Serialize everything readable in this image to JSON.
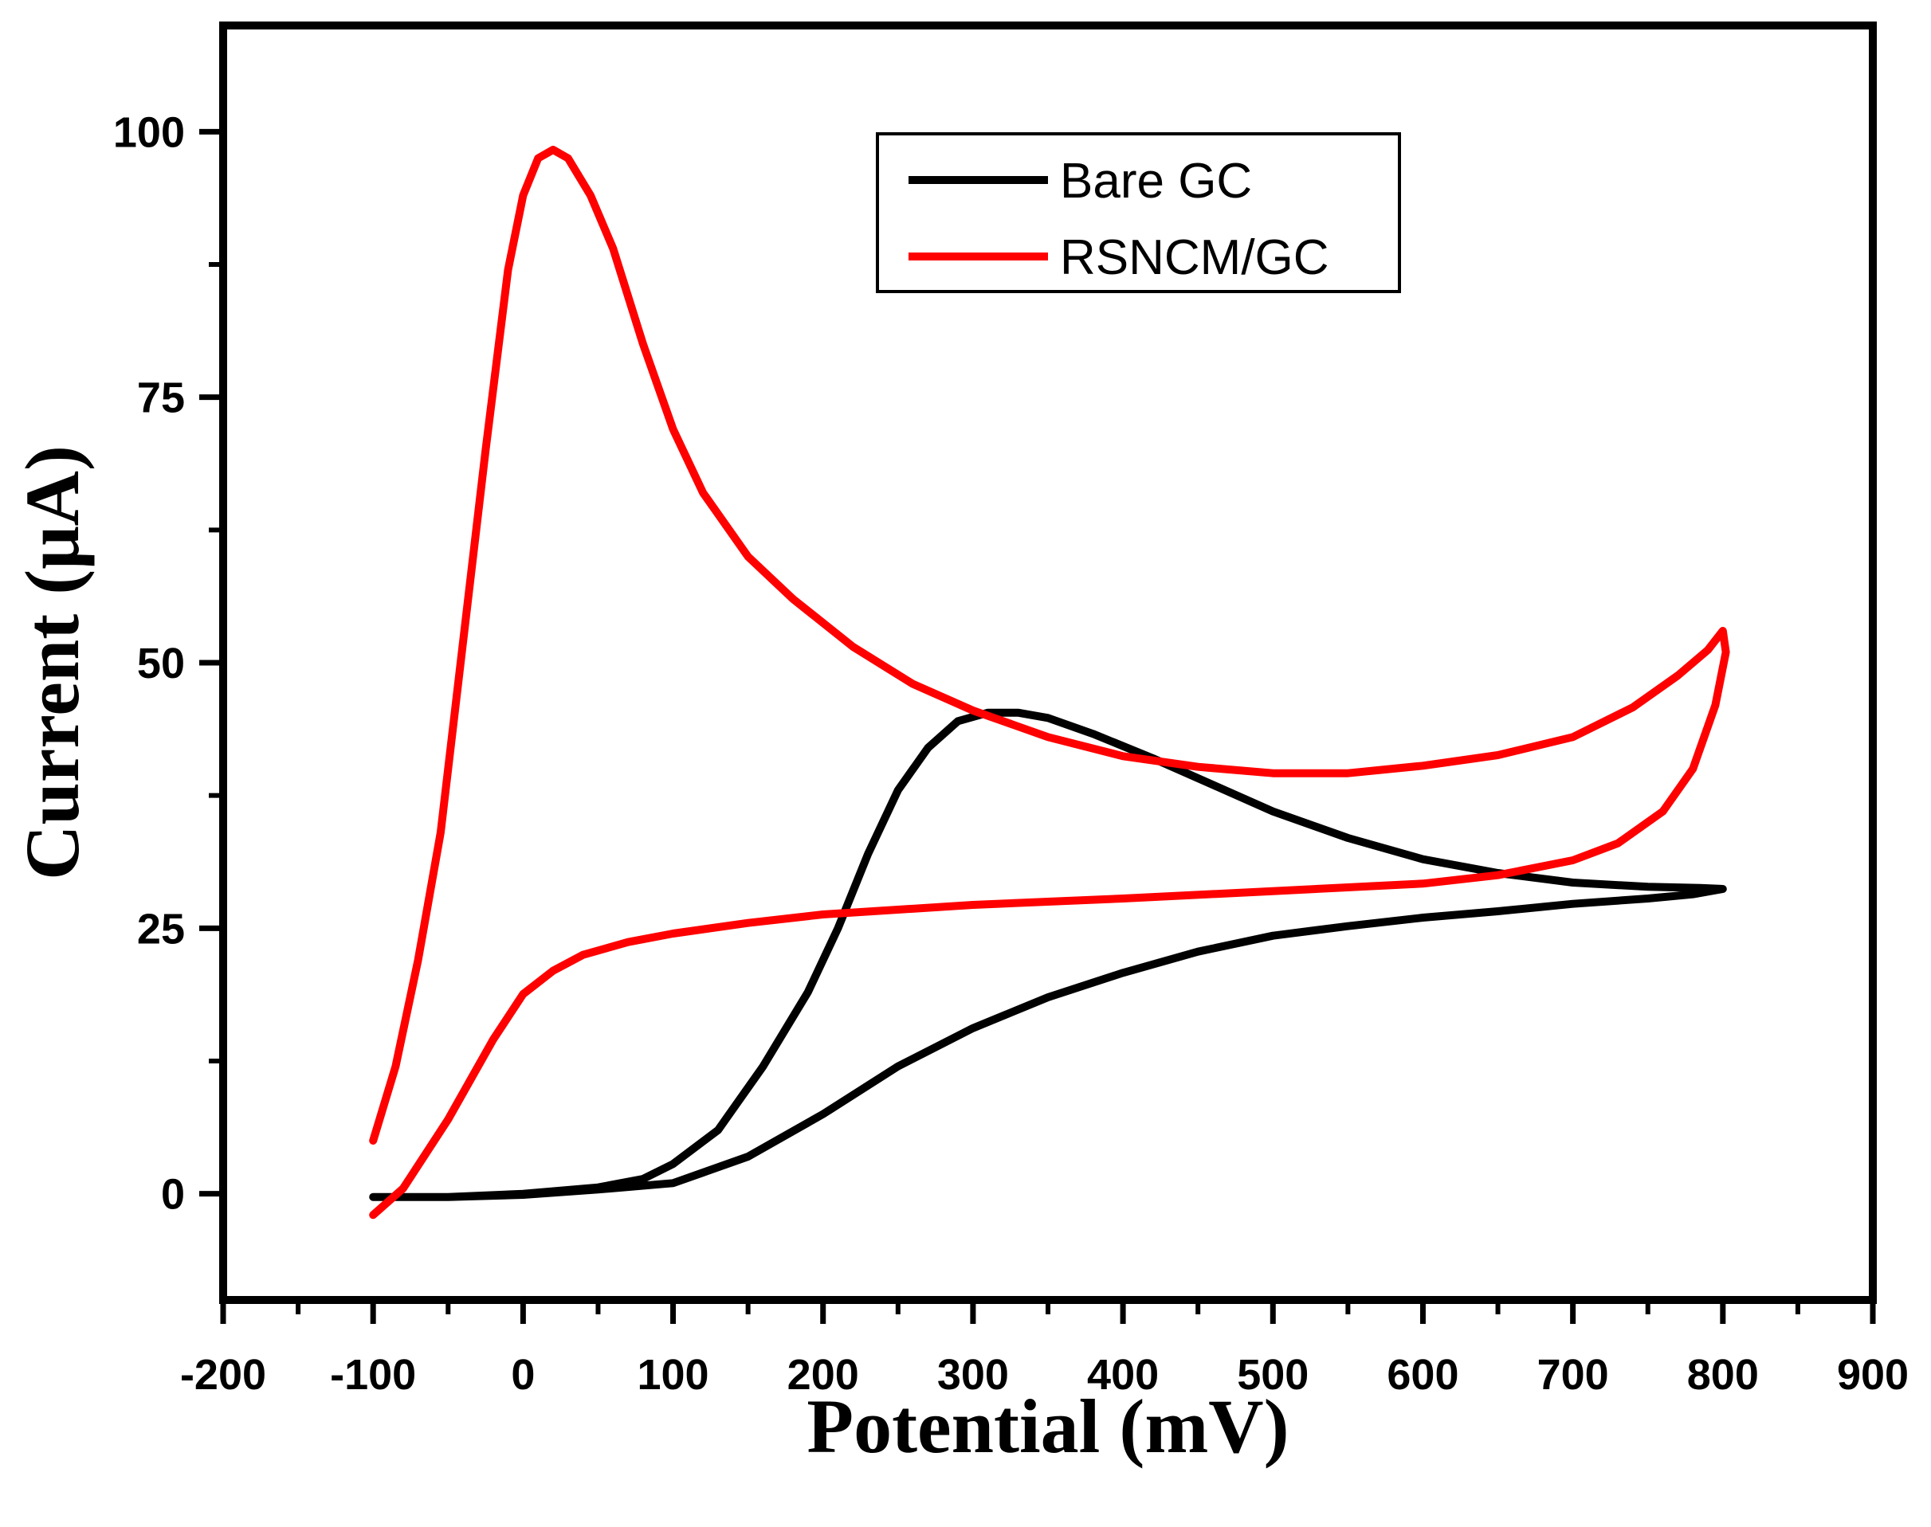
{
  "chart_data": {
    "type": "line",
    "title": "",
    "xlabel": "Potential (mV)",
    "ylabel": "Current (μA)",
    "xlim": [
      -200,
      900
    ],
    "ylim": [
      -10,
      110
    ],
    "x_ticks": [
      -200,
      -100,
      0,
      100,
      200,
      300,
      400,
      500,
      600,
      700,
      800,
      900
    ],
    "y_ticks": [
      0,
      25,
      50,
      75,
      100
    ],
    "x_tick_labels": [
      "-200",
      "-100",
      "0",
      "100",
      "200",
      "300",
      "400",
      "500",
      "600",
      "700",
      "800",
      "900"
    ],
    "y_tick_labels": [
      "0",
      "25",
      "50",
      "75",
      "100"
    ],
    "legend_position": "top-right",
    "series": [
      {
        "name": "Bare GC",
        "color": "#000000",
        "points": [
          [
            -100,
            -0.3
          ],
          [
            -50,
            -0.3
          ],
          [
            0,
            0
          ],
          [
            50,
            0.6
          ],
          [
            80,
            1.4
          ],
          [
            100,
            2.8
          ],
          [
            130,
            6
          ],
          [
            160,
            12
          ],
          [
            190,
            19
          ],
          [
            210,
            25
          ],
          [
            230,
            32
          ],
          [
            250,
            38
          ],
          [
            270,
            42
          ],
          [
            290,
            44.5
          ],
          [
            310,
            45.3
          ],
          [
            330,
            45.3
          ],
          [
            350,
            44.8
          ],
          [
            380,
            43.3
          ],
          [
            420,
            41
          ],
          [
            460,
            38.5
          ],
          [
            500,
            36
          ],
          [
            550,
            33.5
          ],
          [
            600,
            31.5
          ],
          [
            650,
            30.2
          ],
          [
            700,
            29.3
          ],
          [
            750,
            28.9
          ],
          [
            785,
            28.8
          ],
          [
            800,
            28.7
          ],
          [
            780,
            28.2
          ],
          [
            750,
            27.8
          ],
          [
            700,
            27.3
          ],
          [
            650,
            26.6
          ],
          [
            600,
            26
          ],
          [
            550,
            25.2
          ],
          [
            500,
            24.3
          ],
          [
            450,
            22.8
          ],
          [
            400,
            20.8
          ],
          [
            350,
            18.5
          ],
          [
            300,
            15.6
          ],
          [
            250,
            12
          ],
          [
            200,
            7.5
          ],
          [
            150,
            3.5
          ],
          [
            120,
            2
          ],
          [
            100,
            1
          ],
          [
            50,
            0.4
          ],
          [
            0,
            -0.1
          ],
          [
            -50,
            -0.3
          ],
          [
            -100,
            -0.3
          ]
        ]
      },
      {
        "name": "RSNCM/GC",
        "color": "#ff0000",
        "points": [
          [
            -100,
            5
          ],
          [
            -85,
            12
          ],
          [
            -70,
            22
          ],
          [
            -55,
            34
          ],
          [
            -40,
            52
          ],
          [
            -25,
            70
          ],
          [
            -10,
            87
          ],
          [
            0,
            94
          ],
          [
            10,
            97.5
          ],
          [
            20,
            98.3
          ],
          [
            30,
            97.5
          ],
          [
            45,
            94
          ],
          [
            60,
            89
          ],
          [
            80,
            80
          ],
          [
            100,
            72
          ],
          [
            120,
            66
          ],
          [
            150,
            60
          ],
          [
            180,
            56
          ],
          [
            220,
            51.5
          ],
          [
            260,
            48
          ],
          [
            300,
            45.5
          ],
          [
            350,
            43
          ],
          [
            400,
            41.2
          ],
          [
            450,
            40.2
          ],
          [
            500,
            39.6
          ],
          [
            550,
            39.6
          ],
          [
            600,
            40.3
          ],
          [
            650,
            41.3
          ],
          [
            700,
            43
          ],
          [
            740,
            45.8
          ],
          [
            770,
            48.8
          ],
          [
            790,
            51.2
          ],
          [
            800,
            53
          ],
          [
            802,
            51
          ],
          [
            795,
            46
          ],
          [
            780,
            40
          ],
          [
            760,
            36
          ],
          [
            730,
            33
          ],
          [
            700,
            31.4
          ],
          [
            650,
            30
          ],
          [
            600,
            29.2
          ],
          [
            500,
            28.5
          ],
          [
            400,
            27.8
          ],
          [
            300,
            27.2
          ],
          [
            200,
            26.3
          ],
          [
            150,
            25.5
          ],
          [
            100,
            24.5
          ],
          [
            70,
            23.7
          ],
          [
            40,
            22.5
          ],
          [
            20,
            21
          ],
          [
            0,
            18.8
          ],
          [
            -20,
            14.5
          ],
          [
            -50,
            7
          ],
          [
            -80,
            0.5
          ],
          [
            -100,
            -2
          ]
        ]
      }
    ]
  }
}
